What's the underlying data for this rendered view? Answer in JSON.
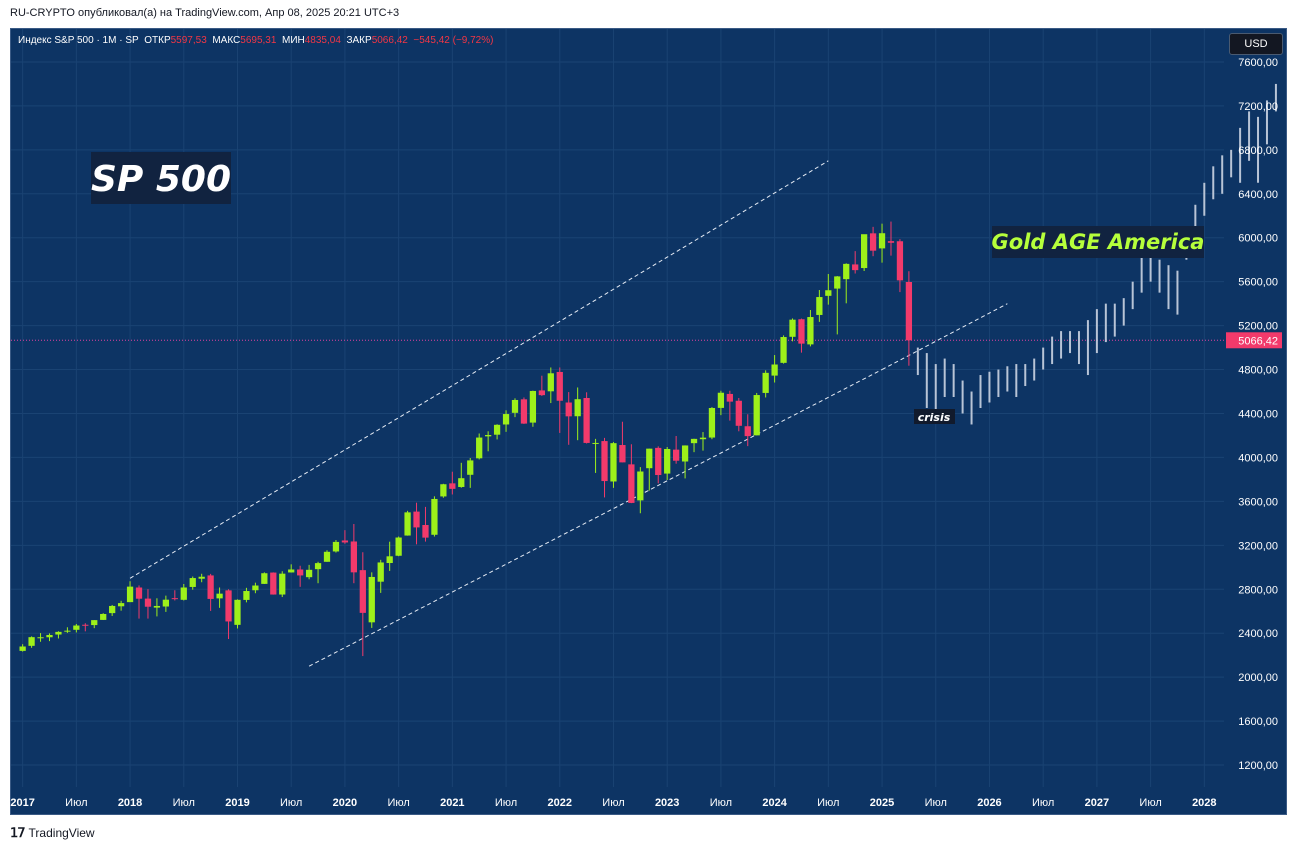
{
  "caption": "RU-CRYPTO опубликовал(а) на TradingView.com, Апр 08, 2025 20:21 UTC+3",
  "legend": {
    "symbol": "Индекс S&P 500 · 1М · SP",
    "open_label": "ОТКР",
    "open": "5597,53",
    "high_label": "МАКС",
    "high": "5695,31",
    "low_label": "МИН",
    "low": "4835,04",
    "close_label": "ЗАКР",
    "close": "5066,42",
    "change": "−545,42 (−9,72%)"
  },
  "currency_button": "USD",
  "brand": "TradingView",
  "colors": {
    "background": "#0d3464",
    "up": "#9ef01a",
    "down": "#f23a6b",
    "projection": "#b8c4d6",
    "price_line": "#e040a0"
  },
  "chart_data": {
    "type": "candlestick",
    "ylim": [
      1000,
      7900
    ],
    "y_ticks": [
      "1200,00",
      "1600,00",
      "2000,00",
      "2400,00",
      "2800,00",
      "3200,00",
      "3600,00",
      "4000,00",
      "4400,00",
      "4800,00",
      "5200,00",
      "5600,00",
      "6000,00",
      "6400,00",
      "6800,00",
      "7200,00",
      "7600,00"
    ],
    "y_tick_values": [
      1200,
      1600,
      2000,
      2400,
      2800,
      3200,
      3600,
      4000,
      4400,
      4800,
      5200,
      5600,
      6000,
      6400,
      6800,
      7200,
      7600
    ],
    "x_ticks": [
      "2017",
      "Июл",
      "2018",
      "Июл",
      "2019",
      "Июл",
      "2020",
      "Июл",
      "2021",
      "Июл",
      "2022",
      "Июл",
      "2023",
      "Июл",
      "2024",
      "Июл",
      "2025",
      "Июл",
      "2026",
      "Июл",
      "2027",
      "Июл",
      "2028"
    ],
    "x_tick_values": [
      0,
      6,
      12,
      18,
      24,
      30,
      36,
      42,
      48,
      54,
      60,
      66,
      72,
      78,
      84,
      90,
      96,
      102,
      108,
      114,
      120,
      126,
      132
    ],
    "x_range": [
      -1.3,
      134.2
    ],
    "last_price": 5066.42,
    "last_price_label": "5066,42",
    "candles_ohlc": [
      [
        2239,
        2300,
        2233,
        2279
      ],
      [
        2285,
        2371,
        2267,
        2364
      ],
      [
        2363,
        2401,
        2322,
        2363
      ],
      [
        2363,
        2398,
        2328,
        2384
      ],
      [
        2388,
        2418,
        2352,
        2412
      ],
      [
        2415,
        2454,
        2403,
        2423
      ],
      [
        2431,
        2484,
        2407,
        2470
      ],
      [
        2477,
        2491,
        2417,
        2472
      ],
      [
        2474,
        2519,
        2446,
        2519
      ],
      [
        2521,
        2582,
        2520,
        2575
      ],
      [
        2583,
        2657,
        2557,
        2648
      ],
      [
        2645,
        2695,
        2605,
        2674
      ],
      [
        2683,
        2873,
        2683,
        2824
      ],
      [
        2816,
        2835,
        2533,
        2714
      ],
      [
        2715,
        2801,
        2533,
        2641
      ],
      [
        2633,
        2718,
        2553,
        2648
      ],
      [
        2643,
        2742,
        2594,
        2705
      ],
      [
        2719,
        2791,
        2698,
        2718
      ],
      [
        2704,
        2848,
        2698,
        2816
      ],
      [
        2821,
        2916,
        2796,
        2902
      ],
      [
        2896,
        2941,
        2864,
        2914
      ],
      [
        2926,
        2940,
        2603,
        2712
      ],
      [
        2717,
        2816,
        2631,
        2760
      ],
      [
        2790,
        2800,
        2347,
        2507
      ],
      [
        2476,
        2708,
        2443,
        2704
      ],
      [
        2703,
        2813,
        2681,
        2784
      ],
      [
        2791,
        2860,
        2764,
        2834
      ],
      [
        2849,
        2954,
        2848,
        2946
      ],
      [
        2952,
        2954,
        2751,
        2752
      ],
      [
        2752,
        2964,
        2729,
        2942
      ],
      [
        2953,
        3027,
        2952,
        2980
      ],
      [
        2980,
        3014,
        2822,
        2926
      ],
      [
        2910,
        3022,
        2891,
        2977
      ],
      [
        2983,
        3050,
        2855,
        3038
      ],
      [
        3050,
        3155,
        3050,
        3141
      ],
      [
        3144,
        3248,
        3134,
        3231
      ],
      [
        3244,
        3338,
        3214,
        3226
      ],
      [
        3235,
        3394,
        2855,
        2954
      ],
      [
        2974,
        3137,
        2192,
        2585
      ],
      [
        2499,
        2954,
        2448,
        2912
      ],
      [
        2869,
        3068,
        2767,
        3044
      ],
      [
        3039,
        3233,
        2967,
        3100
      ],
      [
        3105,
        3280,
        3101,
        3271
      ],
      [
        3289,
        3514,
        3288,
        3500
      ],
      [
        3507,
        3588,
        3209,
        3363
      ],
      [
        3385,
        3550,
        3234,
        3270
      ],
      [
        3296,
        3646,
        3280,
        3622
      ],
      [
        3645,
        3760,
        3633,
        3756
      ],
      [
        3764,
        3870,
        3663,
        3714
      ],
      [
        3731,
        3951,
        3724,
        3811
      ],
      [
        3842,
        3995,
        3723,
        3973
      ],
      [
        3992,
        4218,
        3982,
        4181
      ],
      [
        4192,
        4238,
        4056,
        4204
      ],
      [
        4207,
        4302,
        4164,
        4297
      ],
      [
        4300,
        4429,
        4233,
        4395
      ],
      [
        4406,
        4538,
        4367,
        4523
      ],
      [
        4529,
        4546,
        4305,
        4308
      ],
      [
        4317,
        4608,
        4279,
        4605
      ],
      [
        4610,
        4744,
        4560,
        4567
      ],
      [
        4602,
        4819,
        4495,
        4766
      ],
      [
        4778,
        4819,
        4223,
        4516
      ],
      [
        4500,
        4595,
        4115,
        4374
      ],
      [
        4375,
        4637,
        4157,
        4530
      ],
      [
        4541,
        4593,
        4127,
        4132
      ],
      [
        4131,
        4169,
        3859,
        4132
      ],
      [
        4149,
        4178,
        3636,
        3785
      ],
      [
        3781,
        4140,
        3723,
        4130
      ],
      [
        4113,
        4325,
        3955,
        3955
      ],
      [
        3937,
        4120,
        3584,
        3586
      ],
      [
        3609,
        3912,
        3492,
        3872
      ],
      [
        3902,
        4080,
        3698,
        4080
      ],
      [
        4087,
        4101,
        3764,
        3840
      ],
      [
        3853,
        4095,
        3795,
        4077
      ],
      [
        4071,
        4195,
        3943,
        3970
      ],
      [
        3963,
        4110,
        3809,
        4109
      ],
      [
        4130,
        4170,
        4048,
        4169
      ],
      [
        4166,
        4231,
        4062,
        4180
      ],
      [
        4181,
        4458,
        4166,
        4450
      ],
      [
        4451,
        4607,
        4385,
        4589
      ],
      [
        4578,
        4607,
        4335,
        4508
      ],
      [
        4516,
        4541,
        4238,
        4288
      ],
      [
        4284,
        4393,
        4103,
        4194
      ],
      [
        4201,
        4587,
        4201,
        4568
      ],
      [
        4587,
        4793,
        4546,
        4770
      ],
      [
        4745,
        4932,
        4682,
        4846
      ],
      [
        4861,
        5111,
        4854,
        5096
      ],
      [
        5098,
        5265,
        5057,
        5254
      ],
      [
        5258,
        5264,
        4954,
        5036
      ],
      [
        5029,
        5342,
        5011,
        5278
      ],
      [
        5297,
        5524,
        5234,
        5460
      ],
      [
        5471,
        5670,
        5391,
        5522
      ],
      [
        5537,
        5651,
        5120,
        5648
      ],
      [
        5623,
        5767,
        5403,
        5762
      ],
      [
        5757,
        5878,
        5674,
        5705
      ],
      [
        5724,
        6018,
        5697,
        6032
      ],
      [
        6040,
        6099,
        5832,
        5882
      ],
      [
        5903,
        6128,
        5773,
        6041
      ],
      [
        5969,
        6147,
        5837,
        5954
      ],
      [
        5968,
        5987,
        5505,
        5612
      ],
      [
        5597,
        5695,
        4835,
        5066
      ]
    ],
    "projection_hl": [
      [
        4750,
        5000
      ],
      [
        4450,
        4950
      ],
      [
        4400,
        4850
      ],
      [
        4550,
        4900
      ],
      [
        4550,
        4850
      ],
      [
        4400,
        4700
      ],
      [
        4300,
        4600
      ],
      [
        4450,
        4750
      ],
      [
        4500,
        4780
      ],
      [
        4550,
        4800
      ],
      [
        4600,
        4830
      ],
      [
        4550,
        4850
      ],
      [
        4650,
        4850
      ],
      [
        4700,
        4900
      ],
      [
        4800,
        5000
      ],
      [
        4850,
        5100
      ],
      [
        4900,
        5150
      ],
      [
        4950,
        5150
      ],
      [
        4850,
        5150
      ],
      [
        4750,
        5250
      ],
      [
        4950,
        5350
      ],
      [
        5050,
        5400
      ],
      [
        5100,
        5400
      ],
      [
        5200,
        5450
      ],
      [
        5350,
        5600
      ],
      [
        5500,
        5900
      ],
      [
        5600,
        5880
      ],
      [
        5500,
        5800
      ],
      [
        5350,
        5750
      ],
      [
        5300,
        5700
      ],
      [
        5800,
        6100
      ],
      [
        5950,
        6300
      ],
      [
        6200,
        6500
      ],
      [
        6350,
        6650
      ],
      [
        6400,
        6750
      ],
      [
        6550,
        6800
      ],
      [
        6500,
        7000
      ],
      [
        6700,
        7150
      ],
      [
        6500,
        7100
      ],
      [
        6850,
        7250
      ],
      [
        7150,
        7400
      ]
    ],
    "channel_upper": [
      [
        12,
        2900
      ],
      [
        90,
        6700
      ]
    ],
    "channel_lower": [
      [
        32,
        2100
      ],
      [
        96,
        4800
      ]
    ],
    "channel_lower_ext": [
      [
        96,
        4800
      ],
      [
        110,
        5400
      ]
    ],
    "annotations": [
      {
        "text": "SP 500"
      },
      {
        "text": "Gold AGE America"
      },
      {
        "text": "crisis"
      }
    ]
  }
}
